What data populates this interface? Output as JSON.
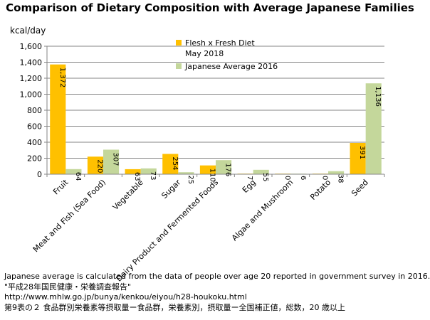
{
  "chart_data": {
    "type": "bar",
    "title": "Comparison of Dietary Composition with Average Japanese Families",
    "ylabel": "kcal/day",
    "xlabel": "",
    "ylim": [
      0,
      1600
    ],
    "yticks": [
      0,
      200,
      400,
      600,
      800,
      1000,
      1200,
      1400,
      1600
    ],
    "ytick_labels": [
      "0",
      "200",
      "400",
      "600",
      "800",
      "1,000",
      "1,200",
      "1,400",
      "1,600"
    ],
    "grid": true,
    "legend_position": "top-right",
    "categories": [
      "Fruit",
      "Meat and Fish (Sea Food)",
      "Vegetable",
      "Sugar",
      "Dairy Product and Fermented Foods",
      "Egg",
      "Algae and Mushroom",
      "Potato",
      "Seed"
    ],
    "series": [
      {
        "name": "Flesh x Fresh Diet May 2018",
        "legend_lines": [
          "Flesh x Fresh Diet",
          "May 2018"
        ],
        "color": "#ffc000",
        "values": [
          1372,
          220,
          63,
          254,
          110,
          7,
          0,
          0,
          391
        ],
        "labels": [
          "1,372",
          "220",
          "63",
          "254",
          "110",
          "7",
          "0",
          "0",
          "391"
        ]
      },
      {
        "name": "Japanese Average 2016",
        "legend_lines": [
          "Japanese Average 2016"
        ],
        "color": "#c4d79b",
        "values": [
          64,
          307,
          73,
          25,
          176,
          55,
          6,
          38,
          1136
        ],
        "labels": [
          "64",
          "307",
          "73",
          "25",
          "176",
          "55",
          "6",
          "38",
          "1,136"
        ]
      }
    ]
  },
  "notes": [
    "Japanese average is calculated from the data of people over age 20 reported in government survey in 2016.",
    "\"平成28年国民健康・栄養調査報告\"",
    "http://www.mhlw.go.jp/bunya/kenkou/eiyou/h28-houkoku.html",
    "第9表の２ 食品群別栄養素等摂取量ー食品群，栄養素別，摂取量ー全国補正値，総数，20 歳以上"
  ]
}
